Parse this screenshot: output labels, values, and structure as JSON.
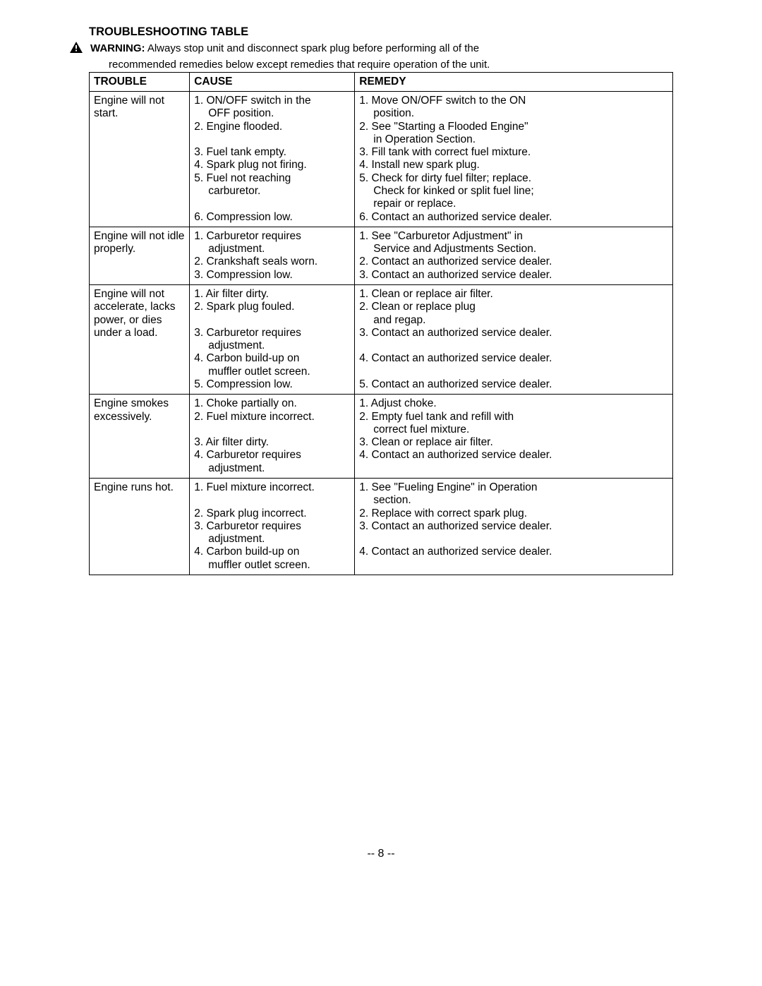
{
  "title": "TROUBLESHOOTING TABLE",
  "warning_label": "WARNING:",
  "warning_text": "Always stop unit and disconnect spark plug before performing all of the",
  "warning_sub": "recommended remedies below except remedies that require operation of the unit.",
  "headers": {
    "trouble": "TROUBLE",
    "cause": "CAUSE",
    "remedy": "REMEDY"
  },
  "rows": [
    {
      "trouble": "Engine will not start.",
      "causes": [
        "1. ON/OFF switch in the",
        "    OFF position.",
        "2. Engine flooded.",
        " ",
        "3. Fuel tank empty.",
        "4. Spark plug not firing.",
        "5. Fuel not reaching",
        "    carburetor.",
        " ",
        "6. Compression low."
      ],
      "remedies": [
        "1. Move ON/OFF switch to the ON",
        "    position.",
        "2. See \"Starting a Flooded Engine\"",
        "    in Operation Section.",
        "3. Fill tank with correct fuel mixture.",
        "4. Install new spark plug.",
        "5. Check for dirty fuel filter; replace.",
        "    Check for kinked or split fuel line;",
        "    repair or replace.",
        "6. Contact an authorized service dealer."
      ]
    },
    {
      "trouble": "Engine will not idle properly.",
      "causes": [
        "1. Carburetor requires",
        "    adjustment.",
        "2. Crankshaft seals worn.",
        "3. Compression low."
      ],
      "remedies": [
        "1. See \"Carburetor Adjustment\" in",
        "    Service and Adjustments Section.",
        "2. Contact an authorized service dealer.",
        "3. Contact an authorized service dealer."
      ]
    },
    {
      "trouble": "Engine will not accelerate, lacks power, or dies under a load.",
      "causes": [
        "1.  Air filter dirty.",
        "2. Spark plug fouled.",
        " ",
        "3. Carburetor requires",
        "    adjustment.",
        "4. Carbon build-up on",
        "    muffler outlet screen.",
        "5. Compression low."
      ],
      "remedies": [
        "1. Clean or replace air filter.",
        "2. Clean or replace plug",
        "    and regap.",
        "3. Contact an authorized service dealer.",
        " ",
        "4. Contact an authorized service dealer.",
        " ",
        "5. Contact an authorized service dealer."
      ]
    },
    {
      "trouble": "Engine smokes excessively.",
      "causes": [
        "1. Choke partially on.",
        "2. Fuel mixture incorrect.",
        " ",
        "3.  Air filter dirty.",
        "4. Carburetor requires",
        "    adjustment."
      ],
      "remedies": [
        "1. Adjust choke.",
        "2. Empty fuel tank and refill with",
        "    correct fuel mixture.",
        "3. Clean or replace air filter.",
        "4. Contact an authorized service dealer."
      ]
    },
    {
      "trouble": "Engine runs hot.",
      "causes": [
        "1. Fuel mixture incorrect.",
        " ",
        "2. Spark plug incorrect.",
        "3. Carburetor requires",
        "    adjustment.",
        "4. Carbon build-up on",
        "    muffler outlet screen."
      ],
      "remedies": [
        "1. See \"Fueling Engine\" in Operation",
        "    section.",
        "2. Replace with correct spark plug.",
        "3. Contact an authorized service dealer.",
        " ",
        "4. Contact an authorized service dealer."
      ]
    }
  ],
  "page_number": "-- 8 --"
}
